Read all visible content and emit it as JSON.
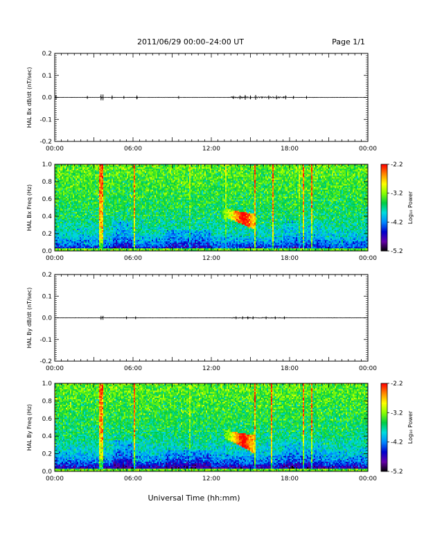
{
  "header": {
    "title": "2011/06/29  00:00–24:00 UT",
    "page": "Page 1/1"
  },
  "xlabel": "Universal Time (hh:mm)",
  "time_ticks": [
    "00:00",
    "06:00",
    "12:00",
    "18:00",
    "00:00"
  ],
  "colorbar": {
    "label": "Log₁₀ Power",
    "tick_labels": [
      "-2.2",
      "-3.2",
      "-4.2",
      "-5.2"
    ],
    "range": [
      -5.2,
      -2.2
    ],
    "colormap": [
      "#000000",
      "#6600aa",
      "#0000cc",
      "#0088ff",
      "#00dddd",
      "#00cc44",
      "#88ff00",
      "#ffff00",
      "#ff8800",
      "#ff0000"
    ]
  },
  "chart_data": [
    {
      "type": "line",
      "ylabel": "HAL Bx dB/dt (nT/sec)",
      "xlim": [
        0,
        24
      ],
      "ylim": [
        -0.2,
        0.2
      ],
      "ytick_labels": [
        "0.2",
        "0.1",
        "0.0",
        "-0.1",
        "-0.2"
      ],
      "series": [
        {
          "baseline": 0.0,
          "bursts": [
            [
              0.1,
              0.004
            ],
            [
              2.5,
              0.003
            ],
            [
              3.55,
              0.006
            ],
            [
              3.7,
              0.006
            ],
            [
              4.4,
              0.004
            ],
            [
              5.3,
              0.003
            ],
            [
              6.3,
              0.004
            ],
            [
              9.5,
              0.002
            ],
            [
              13.7,
              0.003
            ],
            [
              14.2,
              0.004
            ],
            [
              14.6,
              0.005
            ],
            [
              15.0,
              0.004
            ],
            [
              15.4,
              0.005
            ],
            [
              16.4,
              0.004
            ],
            [
              17.0,
              0.004
            ],
            [
              17.7,
              0.004
            ],
            [
              18.3,
              0.003
            ],
            [
              19.3,
              0.003
            ]
          ]
        }
      ]
    },
    {
      "type": "heatmap",
      "ylabel": "HAL Bx Freq (Hz)",
      "xlim": [
        0,
        24
      ],
      "ylim": [
        0.0,
        1.0
      ],
      "ytick_labels": [
        "1.0",
        "0.8",
        "0.6",
        "0.4",
        "0.2",
        "0.0"
      ],
      "zlim": [
        -5.2,
        -2.2
      ],
      "features": {
        "bright_lines_hr": [
          3.5,
          3.7,
          6.1,
          15.3,
          16.7,
          19.1,
          19.7
        ],
        "faint_lines_hr": [
          10.4,
          13.1,
          18.7
        ],
        "event": {
          "t_start": 12.9,
          "t_end": 15.3,
          "f_low": 0.25,
          "f_high": 0.47,
          "peak_log_power": -2.3
        }
      }
    },
    {
      "type": "line",
      "ylabel": "HAL By dB/dt (nT/sec)",
      "xlim": [
        0,
        24
      ],
      "ylim": [
        -0.2,
        0.2
      ],
      "ytick_labels": [
        "0.2",
        "0.1",
        "0.0",
        "-0.1",
        "-0.2"
      ],
      "series": [
        {
          "baseline": 0.0,
          "bursts": [
            [
              3.55,
              0.004
            ],
            [
              3.7,
              0.004
            ],
            [
              5.5,
              0.002
            ],
            [
              6.2,
              0.002
            ],
            [
              13.9,
              0.002
            ],
            [
              14.4,
              0.003
            ],
            [
              14.8,
              0.003
            ],
            [
              15.2,
              0.003
            ],
            [
              16.2,
              0.002
            ],
            [
              16.9,
              0.002
            ],
            [
              17.6,
              0.002
            ]
          ]
        }
      ]
    },
    {
      "type": "heatmap",
      "ylabel": "HAL By Freq (Hz)",
      "xlim": [
        0,
        24
      ],
      "ylim": [
        0.0,
        1.0
      ],
      "ytick_labels": [
        "1.0",
        "0.8",
        "0.6",
        "0.4",
        "0.2",
        "0.0"
      ],
      "zlim": [
        -5.2,
        -2.2
      ],
      "features": {
        "bright_lines_hr": [
          3.5,
          3.7,
          6.1,
          15.3,
          16.6,
          19.1,
          19.7
        ],
        "faint_lines_hr": [
          10.4
        ],
        "event": {
          "t_start": 13.0,
          "t_end": 15.3,
          "f_low": 0.2,
          "f_high": 0.45,
          "peak_log_power": -2.3
        }
      }
    }
  ]
}
